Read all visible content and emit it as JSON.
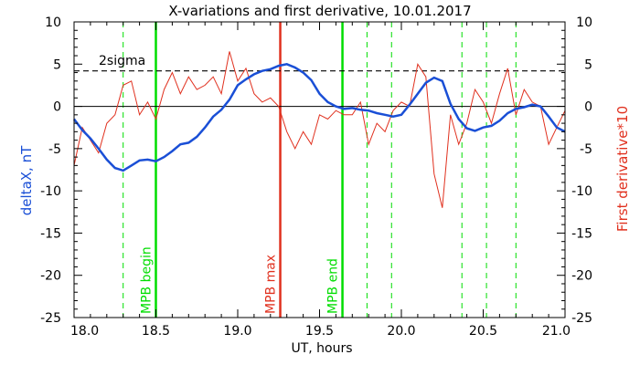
{
  "chart_data": {
    "type": "line",
    "title": "X-variations and first derivative, 10.01.2017",
    "xlabel": "UT, hours",
    "ylabel_left": "deltaX, nT",
    "ylabel_right": "First derivative*10",
    "xlim": [
      18.0,
      21.0
    ],
    "ylim": [
      -25,
      10
    ],
    "x_ticks": [
      "18.0",
      "18.5",
      "19.0",
      "19.5",
      "20.0",
      "20.5",
      "21.0"
    ],
    "y_ticks": [
      "-25",
      "-20",
      "-15",
      "-10",
      "-5",
      "0",
      "5",
      "10"
    ],
    "grid": false,
    "colors": {
      "deltaX": "#1a4fd6",
      "derivative": "#e0301e",
      "mpb_line": "#00dd00",
      "max_line": "#e0301e"
    },
    "sigma": {
      "label": "2sigma",
      "value": 4.2
    },
    "markers": [
      {
        "x": 18.5,
        "label": "MPB begin",
        "color": "#00dd00"
      },
      {
        "x": 19.26,
        "label": "MPB max",
        "color": "#e0301e"
      },
      {
        "x": 19.64,
        "label": "MPB end",
        "color": "#00dd00"
      }
    ],
    "dashed_verticals": [
      18.3,
      19.79,
      19.94,
      20.37,
      20.52,
      20.7
    ],
    "series": [
      {
        "key": "deltaX",
        "x": [
          18.0,
          18.05,
          18.1,
          18.15,
          18.2,
          18.25,
          18.3,
          18.35,
          18.4,
          18.45,
          18.5,
          18.55,
          18.6,
          18.65,
          18.7,
          18.75,
          18.8,
          18.85,
          18.9,
          18.95,
          19.0,
          19.05,
          19.1,
          19.15,
          19.2,
          19.25,
          19.3,
          19.35,
          19.4,
          19.45,
          19.5,
          19.55,
          19.6,
          19.65,
          19.7,
          19.75,
          19.8,
          19.85,
          19.9,
          19.95,
          20.0,
          20.05,
          20.1,
          20.15,
          20.2,
          20.25,
          20.3,
          20.35,
          20.4,
          20.45,
          20.5,
          20.55,
          20.6,
          20.65,
          20.7,
          20.75,
          20.8,
          20.85,
          20.9,
          20.95,
          21.0
        ],
        "y": [
          -1.5,
          -2.8,
          -3.8,
          -5.0,
          -6.3,
          -7.3,
          -7.6,
          -7.0,
          -6.4,
          -6.3,
          -6.5,
          -6.0,
          -5.3,
          -4.5,
          -4.3,
          -3.6,
          -2.5,
          -1.2,
          -0.4,
          0.8,
          2.5,
          3.2,
          3.8,
          4.2,
          4.4,
          4.8,
          5.0,
          4.6,
          4.0,
          3.1,
          1.5,
          0.5,
          0.0,
          -0.3,
          -0.2,
          -0.4,
          -0.5,
          -0.8,
          -1.0,
          -1.2,
          -1.0,
          0.2,
          1.5,
          2.8,
          3.4,
          3.0,
          0.3,
          -1.5,
          -2.6,
          -2.9,
          -2.5,
          -2.3,
          -1.7,
          -0.8,
          -0.3,
          -0.1,
          0.2,
          0.0,
          -1.2,
          -2.5,
          -3.0
        ]
      },
      {
        "key": "derivative",
        "x": [
          18.0,
          18.05,
          18.1,
          18.15,
          18.2,
          18.25,
          18.3,
          18.35,
          18.4,
          18.45,
          18.5,
          18.55,
          18.6,
          18.65,
          18.7,
          18.75,
          18.8,
          18.85,
          18.9,
          18.95,
          19.0,
          19.05,
          19.1,
          19.15,
          19.2,
          19.25,
          19.3,
          19.35,
          19.4,
          19.45,
          19.5,
          19.55,
          19.6,
          19.65,
          19.7,
          19.75,
          19.8,
          19.85,
          19.9,
          19.95,
          20.0,
          20.05,
          20.1,
          20.15,
          20.2,
          20.25,
          20.3,
          20.35,
          20.4,
          20.45,
          20.5,
          20.55,
          20.6,
          20.65,
          20.7,
          20.75,
          20.8,
          20.85,
          20.9,
          20.95,
          21.0
        ],
        "y": [
          -7.0,
          -2.5,
          -4.0,
          -5.5,
          -2.0,
          -1.0,
          2.5,
          3.0,
          -1.0,
          0.5,
          -1.5,
          2.0,
          4.0,
          1.5,
          3.5,
          2.0,
          2.5,
          3.5,
          1.5,
          6.5,
          3.0,
          4.5,
          1.5,
          0.5,
          1.0,
          0.0,
          -3.0,
          -5.0,
          -3.0,
          -4.5,
          -1.0,
          -1.5,
          -0.5,
          -1.0,
          -1.0,
          0.5,
          -4.5,
          -2.0,
          -3.0,
          -0.5,
          0.5,
          0.0,
          5.0,
          3.5,
          -8.0,
          -12.0,
          -1.0,
          -4.5,
          -2.0,
          2.0,
          0.5,
          -2.0,
          1.5,
          4.5,
          -1.0,
          2.0,
          0.5,
          0.0,
          -4.5,
          -2.5,
          -0.5
        ]
      }
    ]
  }
}
